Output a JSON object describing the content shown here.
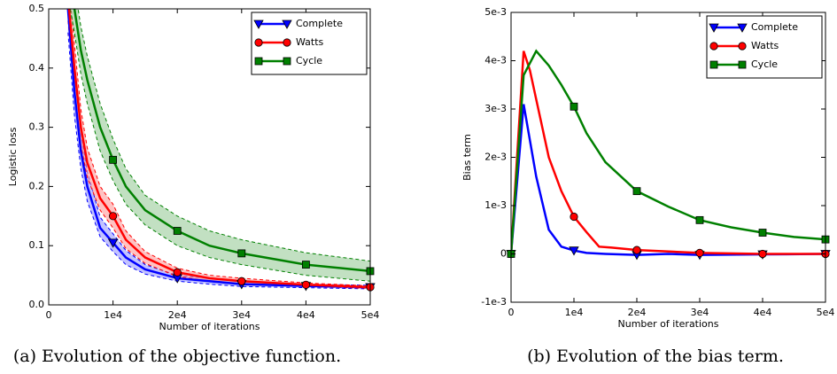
{
  "chart_data": [
    {
      "type": "line",
      "caption": "(a) Evolution of the objective function.",
      "xlabel": "Number of iterations",
      "ylabel": "Logistic loss",
      "xlim": [
        0,
        50000
      ],
      "xticks": [
        0,
        {
          "value": 10000,
          "label": "1e4"
        },
        {
          "value": 20000,
          "label": "2e4"
        },
        {
          "value": 30000,
          "label": "3e4"
        },
        {
          "value": 40000,
          "label": "4e4"
        },
        {
          "value": 50000,
          "label": "5e4"
        }
      ],
      "ylim": [
        0,
        0.5
      ],
      "yticks": [
        {
          "value": 0,
          "label": "0.0"
        },
        0.1,
        0.2,
        0.3,
        0.4,
        0.5
      ],
      "legend": "upper right",
      "series": [
        {
          "name": "Complete",
          "color": "#0000ff",
          "marker": "v",
          "x": [
            3000,
            4000,
            5000,
            6000,
            8000,
            10000,
            12000,
            15000,
            20000,
            25000,
            30000,
            40000,
            50000
          ],
          "values": [
            0.5,
            0.36,
            0.26,
            0.2,
            0.13,
            0.105,
            0.08,
            0.06,
            0.045,
            0.04,
            0.035,
            0.032,
            0.03
          ],
          "lower": [
            0.46,
            0.32,
            0.23,
            0.175,
            0.115,
            0.09,
            0.068,
            0.052,
            0.04,
            0.035,
            0.031,
            0.029,
            0.027
          ],
          "upper": [
            0.54,
            0.4,
            0.29,
            0.225,
            0.148,
            0.12,
            0.092,
            0.068,
            0.05,
            0.045,
            0.039,
            0.035,
            0.033
          ]
        },
        {
          "name": "Watts",
          "color": "#ff0000",
          "marker": "o",
          "x": [
            3000,
            4000,
            5000,
            6000,
            8000,
            10000,
            12000,
            15000,
            20000,
            25000,
            30000,
            40000,
            50000
          ],
          "values": [
            0.52,
            0.4,
            0.3,
            0.24,
            0.18,
            0.15,
            0.11,
            0.08,
            0.055,
            0.045,
            0.04,
            0.034,
            0.03
          ],
          "lower": [
            0.48,
            0.36,
            0.27,
            0.215,
            0.16,
            0.13,
            0.095,
            0.07,
            0.048,
            0.04,
            0.035,
            0.031,
            0.028
          ],
          "upper": [
            0.56,
            0.44,
            0.33,
            0.265,
            0.2,
            0.17,
            0.125,
            0.09,
            0.062,
            0.05,
            0.045,
            0.037,
            0.032
          ]
        },
        {
          "name": "Cycle",
          "color": "#008000",
          "marker": "s",
          "x": [
            3000,
            4000,
            5000,
            6000,
            8000,
            10000,
            12000,
            15000,
            20000,
            25000,
            30000,
            40000,
            50000
          ],
          "values": [
            0.55,
            0.5,
            0.43,
            0.38,
            0.3,
            0.245,
            0.2,
            0.16,
            0.125,
            0.1,
            0.087,
            0.068,
            0.057
          ],
          "lower": [
            0.52,
            0.46,
            0.39,
            0.34,
            0.26,
            0.21,
            0.17,
            0.135,
            0.1,
            0.08,
            0.068,
            0.05,
            0.04
          ],
          "upper": [
            0.58,
            0.54,
            0.47,
            0.42,
            0.34,
            0.28,
            0.23,
            0.185,
            0.15,
            0.125,
            0.11,
            0.088,
            0.074
          ]
        }
      ]
    },
    {
      "type": "line",
      "caption": "(b) Evolution of the bias term.",
      "xlabel": "Number of iterations",
      "ylabel": "Bias term",
      "xlim": [
        0,
        50000
      ],
      "xticks": [
        0,
        {
          "value": 10000,
          "label": "1e4"
        },
        {
          "value": 20000,
          "label": "2e4"
        },
        {
          "value": 30000,
          "label": "3e4"
        },
        {
          "value": 40000,
          "label": "4e4"
        },
        {
          "value": 50000,
          "label": "5e4"
        }
      ],
      "ylim": [
        -0.001,
        0.005
      ],
      "yticks": [
        {
          "value": -0.001,
          "label": "-1e-3"
        },
        0,
        {
          "value": 0.001,
          "label": "1e-3"
        },
        {
          "value": 0.002,
          "label": "2e-3"
        },
        {
          "value": 0.003,
          "label": "3e-3"
        },
        {
          "value": 0.004,
          "label": "4e-3"
        },
        {
          "value": 0.005,
          "label": "5e-3"
        }
      ],
      "legend": "upper right",
      "series": [
        {
          "name": "Complete",
          "color": "#0000ff",
          "marker": "v",
          "x": [
            0,
            2000,
            4000,
            6000,
            8000,
            10000,
            12000,
            15000,
            20000,
            25000,
            30000,
            40000,
            50000
          ],
          "values": [
            0,
            0.0031,
            0.0016,
            0.0005,
            0.00015,
            7e-05,
            2e-05,
            0,
            -2e-05,
            0,
            -2e-05,
            -1e-05,
            0
          ]
        },
        {
          "name": "Watts",
          "color": "#ff0000",
          "marker": "o",
          "x": [
            0,
            2000,
            3000,
            4000,
            6000,
            8000,
            10000,
            12000,
            14000,
            16000,
            20000,
            30000,
            40000,
            50000
          ],
          "values": [
            0,
            0.0042,
            0.0038,
            0.0032,
            0.002,
            0.0013,
            0.00077,
            0.00045,
            0.00015,
            0.00013,
            8e-05,
            2e-05,
            0,
            0
          ]
        },
        {
          "name": "Cycle",
          "color": "#008000",
          "marker": "s",
          "x": [
            0,
            2000,
            4000,
            6000,
            8000,
            10000,
            12000,
            15000,
            20000,
            25000,
            30000,
            35000,
            40000,
            45000,
            50000
          ],
          "values": [
            0,
            0.0037,
            0.0042,
            0.0039,
            0.0035,
            0.00305,
            0.0025,
            0.0019,
            0.0013,
            0.00098,
            0.0007,
            0.00055,
            0.00044,
            0.00035,
            0.0003
          ]
        }
      ]
    }
  ]
}
